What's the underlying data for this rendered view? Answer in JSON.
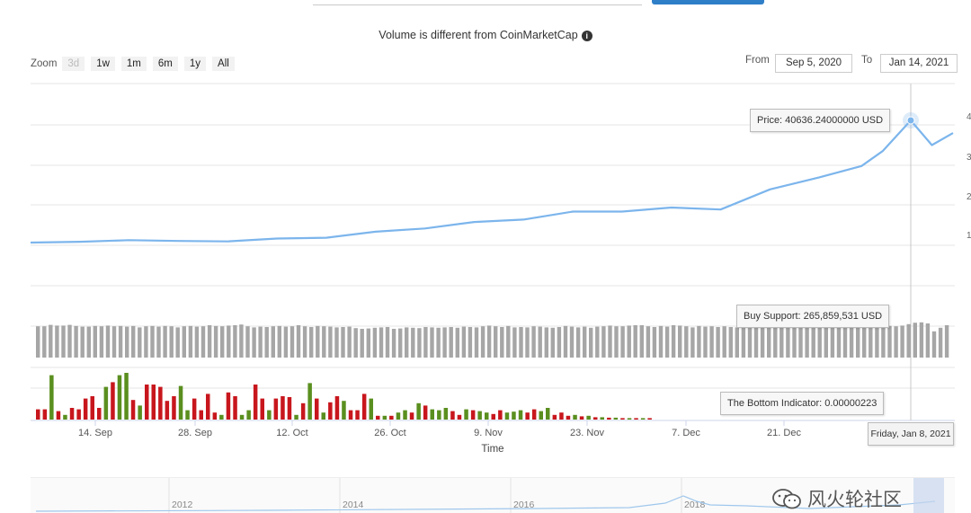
{
  "notice": {
    "text": "Volume is different from CoinMarketCap",
    "icon": "info-icon"
  },
  "zoom": {
    "label": "Zoom",
    "buttons": [
      "3d",
      "1w",
      "1m",
      "6m",
      "1y",
      "All"
    ],
    "disabled": "3d"
  },
  "range": {
    "from_label": "From",
    "from_value": "Sep 5, 2020",
    "to_label": "To",
    "to_value": "Jan 14, 2021"
  },
  "tooltips": {
    "price": "Price: 40636.24000000 USD",
    "buy_support": "Buy Support: 265,859,531 USD",
    "bottom_indicator": "The Bottom Indicator: 0.00000223",
    "date": "Friday, Jan 8, 2021"
  },
  "watermark": "风火轮社区",
  "colors": {
    "line": "#7cb5ec",
    "support_bar": "#a6a6a6",
    "up": "#5a8f1f",
    "down": "#c8161d"
  },
  "chart_data": {
    "type": "line",
    "xlabel": "Time",
    "x_ticks": [
      "14. Sep",
      "28. Sep",
      "12. Oct",
      "26. Oct",
      "9. Nov",
      "23. Nov",
      "7. Dec",
      "21. Dec"
    ],
    "right_tick_partials": [
      "4",
      "3",
      "2",
      "1"
    ],
    "navigator_ticks": [
      "2012",
      "2014",
      "2016",
      "2018"
    ],
    "price": {
      "name": "Price",
      "unit": "USD",
      "dates": [
        "2020-09-05",
        "2020-09-12",
        "2020-09-19",
        "2020-09-26",
        "2020-10-03",
        "2020-10-10",
        "2020-10-17",
        "2020-10-24",
        "2020-10-31",
        "2020-11-07",
        "2020-11-14",
        "2020-11-21",
        "2020-11-28",
        "2020-12-05",
        "2020-12-12",
        "2020-12-19",
        "2020-12-26",
        "2021-01-01",
        "2021-01-04",
        "2021-01-08",
        "2021-01-11",
        "2021-01-14"
      ],
      "values": [
        10300,
        10500,
        10900,
        10700,
        10600,
        11300,
        11500,
        13000,
        13800,
        15400,
        16000,
        18000,
        18000,
        19000,
        18500,
        23500,
        26500,
        29300,
        33000,
        40636,
        34500,
        37500
      ]
    },
    "buy_support": {
      "name": "Buy Support",
      "unit": "USD",
      "peak": 265859531,
      "values": [
        0.87,
        0.87,
        0.91,
        0.89,
        0.89,
        0.91,
        0.88,
        0.86,
        0.86,
        0.88,
        0.87,
        0.89,
        0.87,
        0.88,
        0.86,
        0.88,
        0.84,
        0.87,
        0.88,
        0.86,
        0.88,
        0.87,
        0.84,
        0.87,
        0.88,
        0.86,
        0.87,
        0.9,
        0.88,
        0.87,
        0.89,
        0.9,
        0.92,
        0.87,
        0.84,
        0.86,
        0.85,
        0.87,
        0.88,
        0.86,
        0.87,
        0.9,
        0.87,
        0.85,
        0.88,
        0.87,
        0.86,
        0.84,
        0.85,
        0.86,
        0.82,
        0.8,
        0.81,
        0.83,
        0.84,
        0.85,
        0.8,
        0.81,
        0.84,
        0.83,
        0.82,
        0.85,
        0.84,
        0.83,
        0.84,
        0.85,
        0.83,
        0.86,
        0.85,
        0.84,
        0.87,
        0.89,
        0.87,
        0.85,
        0.88,
        0.84,
        0.85,
        0.84,
        0.87,
        0.86,
        0.84,
        0.83,
        0.85,
        0.88,
        0.86,
        0.84,
        0.86,
        0.83,
        0.86,
        0.87,
        0.89,
        0.87,
        0.87,
        0.89,
        0.9,
        0.9,
        0.87,
        0.85,
        0.88,
        0.86,
        0.9,
        0.89,
        0.87,
        0.84,
        0.88,
        0.86,
        0.87,
        0.85,
        0.87,
        0.85,
        0.84,
        0.87,
        0.85,
        0.84,
        0.86,
        0.85,
        0.84,
        0.86,
        0.88,
        0.87,
        0.85,
        0.84,
        0.85,
        0.86,
        0.84,
        0.88,
        0.91,
        0.89,
        0.86,
        0.9,
        0.92,
        0.9,
        0.88,
        0.91,
        0.88,
        0.87,
        0.89,
        0.93,
        0.97,
        0.98,
        0.95,
        0.73,
        0.83,
        0.9
      ]
    },
    "bottom_indicator": {
      "name": "The Bottom Indicator",
      "current": 2.23e-06,
      "values": [
        0.22,
        0.22,
        0.95,
        0.18,
        0.1,
        0.25,
        0.22,
        0.45,
        0.5,
        0.25,
        0.7,
        0.8,
        0.95,
        1.0,
        0.42,
        0.3,
        0.75,
        0.75,
        0.7,
        0.4,
        0.5,
        0.72,
        0.2,
        0.45,
        0.2,
        0.55,
        0.15,
        0.1,
        0.58,
        0.5,
        0.1,
        0.2,
        0.75,
        0.45,
        0.2,
        0.45,
        0.5,
        0.48,
        0.1,
        0.35,
        0.78,
        0.45,
        0.15,
        0.37,
        0.5,
        0.4,
        0.2,
        0.2,
        0.55,
        0.45,
        0.08,
        0.08,
        0.08,
        0.15,
        0.2,
        0.15,
        0.35,
        0.3,
        0.22,
        0.2,
        0.25,
        0.18,
        0.1,
        0.22,
        0.2,
        0.18,
        0.15,
        0.12,
        0.2,
        0.15,
        0.17,
        0.2,
        0.15,
        0.22,
        0.18,
        0.25,
        0.1,
        0.15,
        0.08,
        0.1,
        0.07,
        0.08,
        0.05,
        0.05,
        0.04,
        0.04,
        0.03,
        0.03,
        0.03,
        0.03,
        0.03
      ],
      "colors": [
        "d",
        "d",
        "u",
        "d",
        "u",
        "d",
        "d",
        "d",
        "d",
        "d",
        "u",
        "d",
        "u",
        "u",
        "d",
        "u",
        "d",
        "d",
        "d",
        "d",
        "d",
        "u",
        "u",
        "d",
        "d",
        "d",
        "d",
        "u",
        "d",
        "d",
        "u",
        "u",
        "d",
        "d",
        "u",
        "d",
        "d",
        "d",
        "u",
        "d",
        "u",
        "d",
        "u",
        "d",
        "d",
        "u",
        "d",
        "d",
        "d",
        "u",
        "d",
        "u",
        "d",
        "u",
        "u",
        "d",
        "u",
        "d",
        "u",
        "u",
        "u",
        "d",
        "d",
        "u",
        "d",
        "u",
        "u",
        "d",
        "d",
        "u",
        "u",
        "u",
        "d",
        "d",
        "u",
        "u",
        "d",
        "d",
        "d",
        "u",
        "d",
        "u",
        "d",
        "u",
        "d",
        "u",
        "d",
        "u",
        "d",
        "u",
        "d"
      ]
    }
  }
}
